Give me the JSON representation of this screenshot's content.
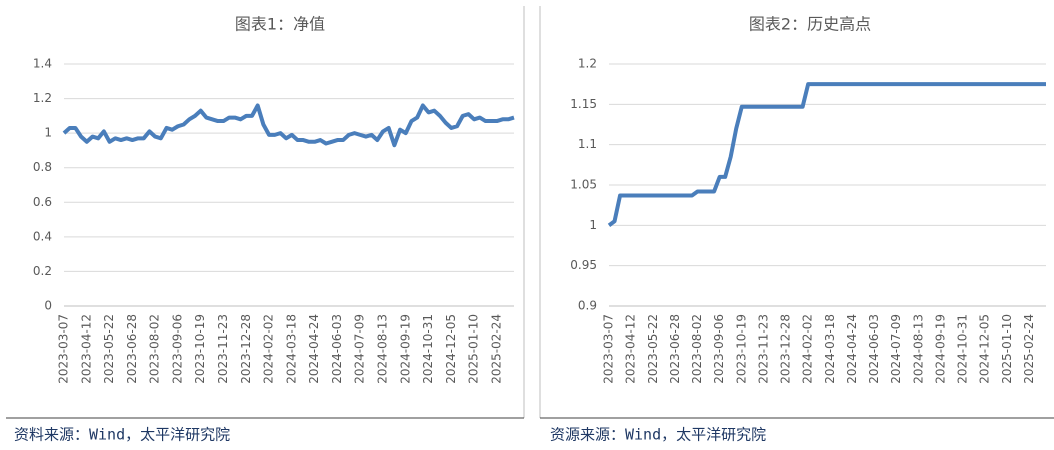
{
  "chart_data": [
    {
      "type": "line",
      "title": "图表1：净值",
      "source": "资料来源：Wind，太平洋研究院",
      "color": "#4a7ebb",
      "grid": true,
      "ylim": [
        0,
        1.4
      ],
      "yticks": [
        0,
        0.2,
        0.4,
        0.6,
        0.8,
        1,
        1.2,
        1.4
      ],
      "categories": [
        "2023-03-07",
        null,
        null,
        null,
        "2023-04-12",
        null,
        null,
        null,
        "2023-05-22",
        null,
        null,
        null,
        "2023-06-28",
        null,
        null,
        null,
        "2023-08-02",
        null,
        null,
        null,
        "2023-09-06",
        null,
        null,
        null,
        "2023-10-19",
        null,
        null,
        null,
        "2023-11-23",
        null,
        null,
        null,
        "2023-12-28",
        null,
        null,
        null,
        "2024-02-02",
        null,
        null,
        null,
        "2024-03-18",
        null,
        null,
        null,
        "2024-04-24",
        null,
        null,
        null,
        "2024-06-03",
        null,
        null,
        null,
        "2024-07-09",
        null,
        null,
        null,
        "2024-08-13",
        null,
        null,
        null,
        "2024-09-19",
        null,
        null,
        null,
        "2024-10-31",
        null,
        null,
        null,
        "2024-12-05",
        null,
        null,
        null,
        "2025-01-10",
        null,
        null,
        null,
        "2025-02-24",
        null,
        null,
        null
      ],
      "values": [
        1.0,
        1.03,
        1.03,
        0.98,
        0.95,
        0.98,
        0.97,
        1.01,
        0.95,
        0.97,
        0.96,
        0.97,
        0.96,
        0.97,
        0.97,
        1.01,
        0.98,
        0.97,
        1.03,
        1.02,
        1.04,
        1.05,
        1.08,
        1.1,
        1.13,
        1.09,
        1.08,
        1.07,
        1.07,
        1.09,
        1.09,
        1.08,
        1.1,
        1.1,
        1.16,
        1.05,
        0.99,
        0.99,
        1.0,
        0.97,
        0.99,
        0.96,
        0.96,
        0.95,
        0.95,
        0.96,
        0.94,
        0.95,
        0.96,
        0.96,
        0.99,
        1.0,
        0.99,
        0.98,
        0.99,
        0.96,
        1.01,
        1.03,
        0.93,
        1.02,
        1.0,
        1.07,
        1.09,
        1.16,
        1.12,
        1.13,
        1.1,
        1.06,
        1.03,
        1.04,
        1.1,
        1.11,
        1.08,
        1.09,
        1.07,
        1.07,
        1.07,
        1.08,
        1.08,
        1.09
      ]
    },
    {
      "type": "line",
      "title": "图表2：历史高点",
      "source": "资源来源：Wind，太平洋研究院",
      "color": "#4a7ebb",
      "grid": true,
      "ylim": [
        0.9,
        1.2
      ],
      "yticks": [
        0.9,
        0.95,
        1,
        1.05,
        1.1,
        1.15,
        1.2
      ],
      "categories": [
        "2023-03-07",
        null,
        null,
        null,
        "2023-04-12",
        null,
        null,
        null,
        "2023-05-22",
        null,
        null,
        null,
        "2023-06-28",
        null,
        null,
        null,
        "2023-08-02",
        null,
        null,
        null,
        "2023-09-06",
        null,
        null,
        null,
        "2023-10-19",
        null,
        null,
        null,
        "2023-11-23",
        null,
        null,
        null,
        "2023-12-28",
        null,
        null,
        null,
        "2024-02-02",
        null,
        null,
        null,
        "2024-03-18",
        null,
        null,
        null,
        "2024-04-24",
        null,
        null,
        null,
        "2024-06-03",
        null,
        null,
        null,
        "2024-07-09",
        null,
        null,
        null,
        "2024-08-13",
        null,
        null,
        null,
        "2024-09-19",
        null,
        null,
        null,
        "2024-10-31",
        null,
        null,
        null,
        "2024-12-05",
        null,
        null,
        null,
        "2025-01-10",
        null,
        null,
        null,
        "2025-02-24",
        null,
        null,
        null
      ],
      "values": [
        1.0,
        1.005,
        1.037,
        1.037,
        1.037,
        1.037,
        1.037,
        1.037,
        1.037,
        1.037,
        1.037,
        1.037,
        1.037,
        1.037,
        1.037,
        1.037,
        1.042,
        1.042,
        1.042,
        1.042,
        1.06,
        1.06,
        1.085,
        1.12,
        1.147,
        1.147,
        1.147,
        1.147,
        1.147,
        1.147,
        1.147,
        1.147,
        1.147,
        1.147,
        1.147,
        1.147,
        1.175,
        1.175,
        1.175,
        1.175,
        1.175,
        1.175,
        1.175,
        1.175,
        1.175,
        1.175,
        1.175,
        1.175,
        1.175,
        1.175,
        1.175,
        1.175,
        1.175,
        1.175,
        1.175,
        1.175,
        1.175,
        1.175,
        1.175,
        1.175,
        1.175,
        1.175,
        1.175,
        1.175,
        1.175,
        1.175,
        1.175,
        1.175,
        1.175,
        1.175,
        1.175,
        1.175,
        1.175,
        1.175,
        1.175,
        1.175,
        1.175,
        1.175,
        1.175,
        1.175
      ]
    }
  ]
}
